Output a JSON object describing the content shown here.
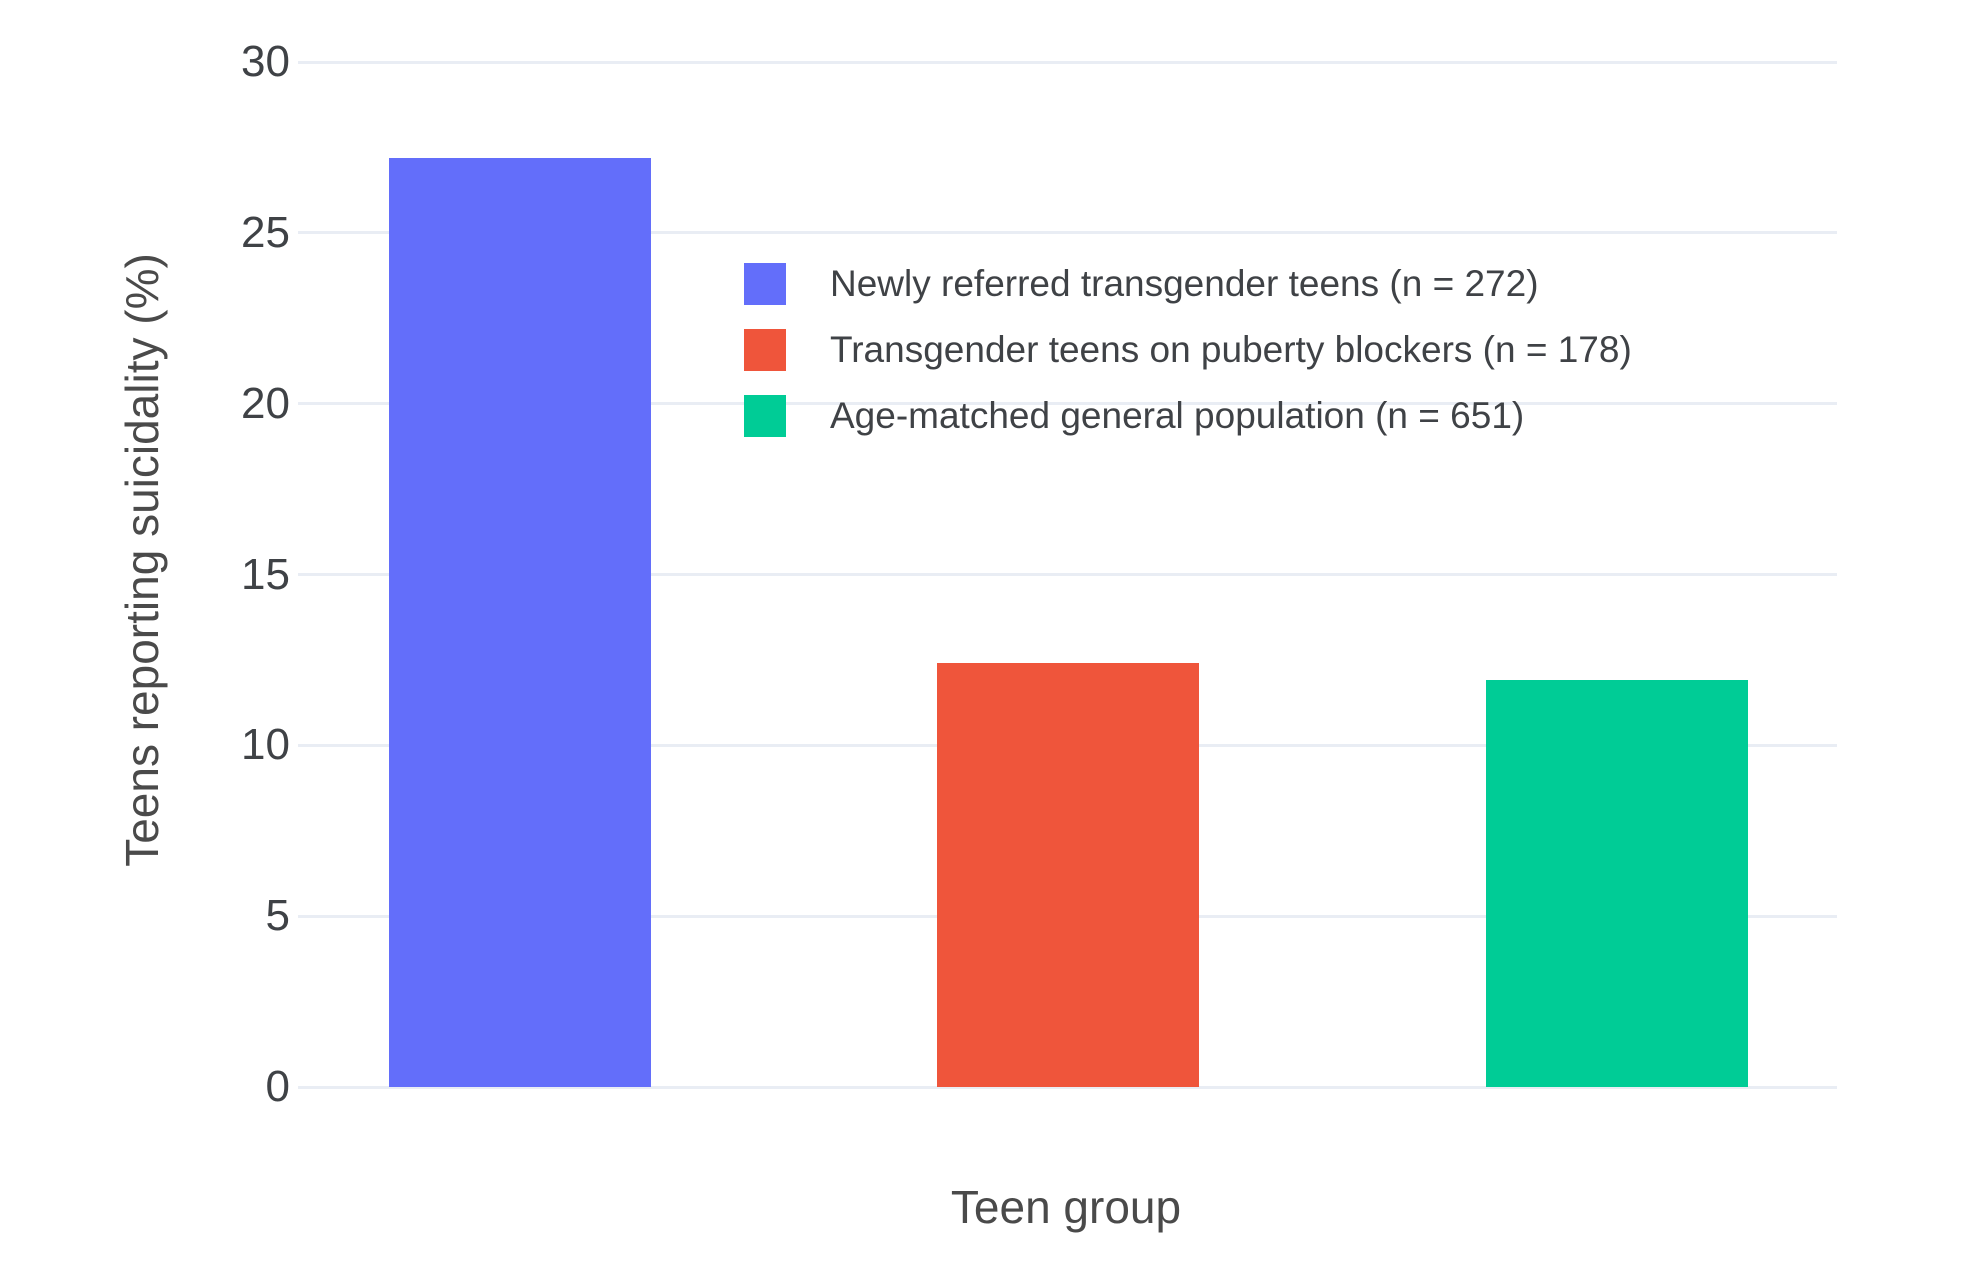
{
  "chart_data": {
    "type": "bar",
    "title": "",
    "xlabel": "Teen group",
    "ylabel": "Teens reporting suicidality (%)",
    "categories": [
      "Newly referred transgender teens (n = 272)",
      "Transgender teens on puberty blockers (n = 178)",
      "Age-matched general population (n = 651)"
    ],
    "values": [
      27.2,
      12.4,
      11.9
    ],
    "colors": [
      "#636EFA",
      "#EF553B",
      "#00CC96"
    ],
    "ylim": [
      0,
      30
    ],
    "yticks": [
      0,
      5,
      10,
      15,
      20,
      25,
      30
    ],
    "grid": true,
    "legend_position": "inside-top-center-right",
    "x_tick_labels_shown": false
  },
  "colors": {
    "background": "#ffffff",
    "gridline": "#e9edf4",
    "tick_text": "#3f4246",
    "axis_title_text": "#4a4a4a"
  }
}
